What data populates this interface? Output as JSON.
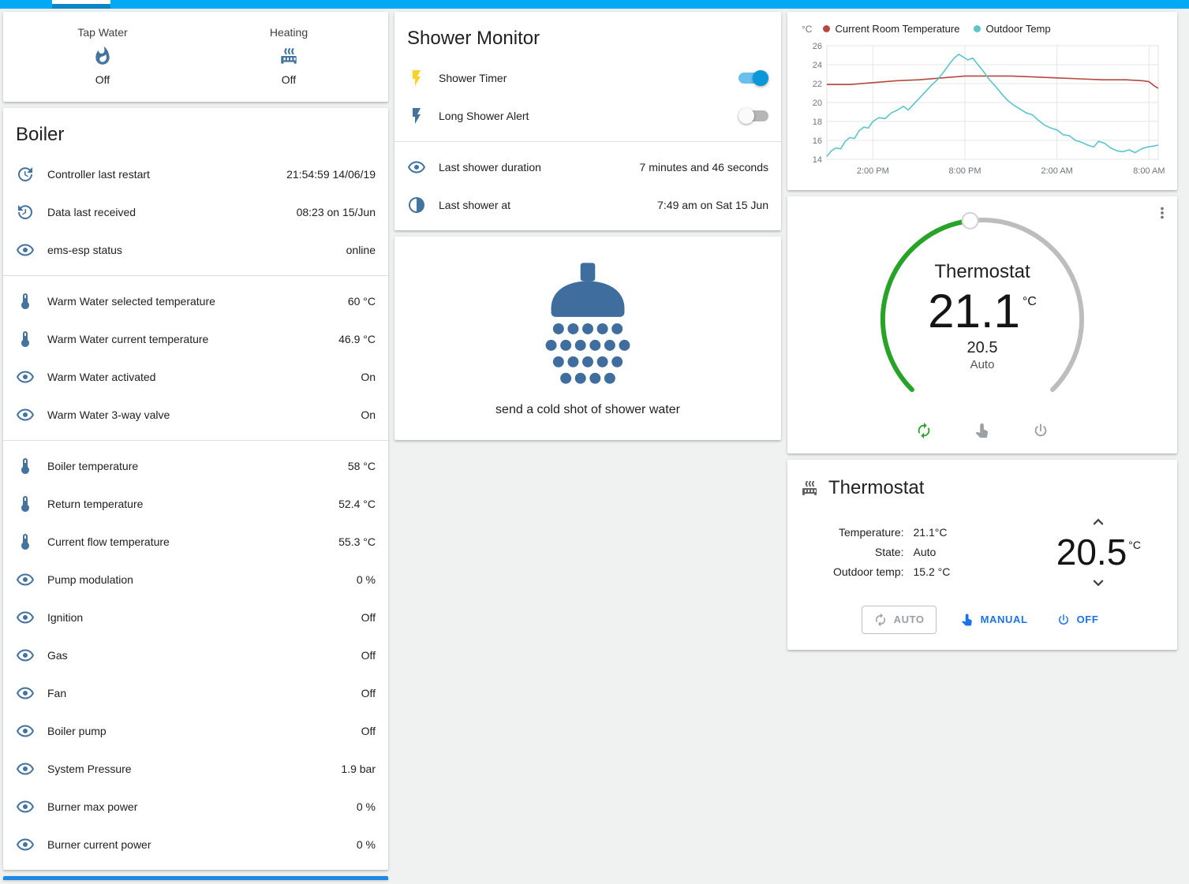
{
  "theme": {
    "topbar_color": "#03a9f4",
    "icon_color": "#44739e",
    "accent_green": "#27a327",
    "toggle_on_color": "#0b98d8",
    "blue_action": "#1a73e8",
    "page_bg": "#f0f1f1",
    "card_bg": "#ffffff"
  },
  "glance": {
    "items": [
      {
        "label": "Tap Water",
        "icon": "fire",
        "state": "Off"
      },
      {
        "label": "Heating",
        "icon": "radiator",
        "state": "Off"
      }
    ]
  },
  "boiler": {
    "title": "Boiler",
    "rows": [
      {
        "icon": "clock-restart",
        "name": "Controller last restart",
        "value": "21:54:59 14/06/19"
      },
      {
        "icon": "clock-receive",
        "name": "Data last received",
        "value": "08:23 on 15/Jun"
      },
      {
        "icon": "eye",
        "name": "ems-esp status",
        "value": "online",
        "divider_after": true
      },
      {
        "icon": "thermometer",
        "name": "Warm Water selected temperature",
        "value": "60 °C"
      },
      {
        "icon": "thermometer",
        "name": "Warm Water current temperature",
        "value": "46.9 °C"
      },
      {
        "icon": "eye",
        "name": "Warm Water activated",
        "value": "On"
      },
      {
        "icon": "eye",
        "name": "Warm Water 3-way valve",
        "value": "On",
        "divider_after": true
      },
      {
        "icon": "thermometer",
        "name": "Boiler temperature",
        "value": "58 °C"
      },
      {
        "icon": "thermometer",
        "name": "Return temperature",
        "value": "52.4 °C"
      },
      {
        "icon": "thermometer",
        "name": "Current flow temperature",
        "value": "55.3 °C"
      },
      {
        "icon": "eye",
        "name": "Pump modulation",
        "value": "0 %"
      },
      {
        "icon": "eye",
        "name": "Ignition",
        "value": "Off"
      },
      {
        "icon": "eye",
        "name": "Gas",
        "value": "Off"
      },
      {
        "icon": "eye",
        "name": "Fan",
        "value": "Off"
      },
      {
        "icon": "eye",
        "name": "Boiler pump",
        "value": "Off"
      },
      {
        "icon": "eye",
        "name": "System Pressure",
        "value": "1.9 bar"
      },
      {
        "icon": "eye",
        "name": "Burner max power",
        "value": "0 %"
      },
      {
        "icon": "eye",
        "name": "Burner current power",
        "value": "0 %"
      }
    ]
  },
  "shower_monitor": {
    "title": "Shower Monitor",
    "toggles": [
      {
        "icon": "flash",
        "icon_color": "#fdd128",
        "name": "Shower Timer",
        "on": true
      },
      {
        "icon": "flash",
        "icon_color": "#44739e",
        "name": "Long Shower Alert",
        "on": false
      }
    ],
    "info": [
      {
        "icon": "eye",
        "name": "Last shower duration",
        "value": "7 minutes and 46 seconds"
      },
      {
        "icon": "clock-half",
        "name": "Last shower at",
        "value": "7:49 am on Sat 15 Jun"
      }
    ]
  },
  "shower_action": {
    "label": "send a cold shot of shower water",
    "icon_color": "#3f6e9e"
  },
  "chart_data": {
    "type": "line",
    "title": "",
    "ylabel": "°C",
    "ylim": [
      14,
      26
    ],
    "ytick": 2,
    "xlim": [
      0,
      21.6
    ],
    "x_unit": "hours from 11:00 AM",
    "grid": true,
    "legend_position": "top",
    "xticks": [
      {
        "x": 3,
        "label": "2:00 PM"
      },
      {
        "x": 9,
        "label": "8:00 PM"
      },
      {
        "x": 15,
        "label": "2:00 AM"
      },
      {
        "x": 21,
        "label": "8:00 AM"
      }
    ],
    "series": [
      {
        "name": "Current Room Temperature",
        "color": "#b5483f",
        "points": [
          [
            0,
            21.9
          ],
          [
            1.5,
            21.9
          ],
          [
            3,
            22.1
          ],
          [
            4.5,
            22.3
          ],
          [
            6,
            22.4
          ],
          [
            7.5,
            22.6
          ],
          [
            9,
            22.8
          ],
          [
            10.5,
            22.8
          ],
          [
            12,
            22.8
          ],
          [
            13.5,
            22.7
          ],
          [
            15,
            22.6
          ],
          [
            16.5,
            22.5
          ],
          [
            18,
            22.4
          ],
          [
            19.5,
            22.4
          ],
          [
            20.6,
            22.3
          ],
          [
            21.0,
            22.2
          ],
          [
            21.3,
            21.8
          ],
          [
            21.6,
            21.5
          ]
        ]
      },
      {
        "name": "Outdoor Temp",
        "color": "#5bc4cc",
        "points": [
          [
            0,
            14.3
          ],
          [
            0.3,
            14.9
          ],
          [
            0.6,
            15.2
          ],
          [
            0.9,
            15.1
          ],
          [
            1.2,
            15.9
          ],
          [
            1.5,
            16.3
          ],
          [
            1.8,
            16.2
          ],
          [
            2.1,
            17.0
          ],
          [
            2.4,
            17.4
          ],
          [
            2.7,
            17.3
          ],
          [
            3.0,
            18.0
          ],
          [
            3.4,
            18.4
          ],
          [
            3.8,
            18.3
          ],
          [
            4.2,
            18.9
          ],
          [
            4.6,
            19.2
          ],
          [
            5.0,
            19.6
          ],
          [
            5.3,
            19.2
          ],
          [
            5.7,
            19.9
          ],
          [
            6.0,
            20.4
          ],
          [
            6.4,
            21.1
          ],
          [
            6.8,
            21.8
          ],
          [
            7.2,
            22.4
          ],
          [
            7.6,
            23.2
          ],
          [
            8.0,
            24.1
          ],
          [
            8.3,
            24.7
          ],
          [
            8.6,
            25.1
          ],
          [
            8.9,
            24.8
          ],
          [
            9.2,
            24.5
          ],
          [
            9.5,
            24.7
          ],
          [
            9.8,
            24.1
          ],
          [
            10.2,
            23.3
          ],
          [
            10.6,
            22.4
          ],
          [
            11.0,
            21.7
          ],
          [
            11.4,
            20.9
          ],
          [
            11.8,
            20.2
          ],
          [
            12.2,
            19.7
          ],
          [
            12.6,
            19.3
          ],
          [
            13.0,
            18.9
          ],
          [
            13.4,
            18.7
          ],
          [
            13.8,
            18.1
          ],
          [
            14.2,
            17.6
          ],
          [
            14.6,
            17.3
          ],
          [
            15.0,
            17.1
          ],
          [
            15.4,
            16.6
          ],
          [
            15.8,
            16.5
          ],
          [
            16.2,
            16.0
          ],
          [
            16.6,
            15.8
          ],
          [
            17.0,
            15.5
          ],
          [
            17.4,
            15.3
          ],
          [
            17.7,
            15.9
          ],
          [
            18.1,
            15.7
          ],
          [
            18.5,
            15.2
          ],
          [
            18.9,
            14.9
          ],
          [
            19.3,
            14.8
          ],
          [
            19.7,
            15.0
          ],
          [
            20.1,
            14.7
          ],
          [
            20.5,
            15.1
          ],
          [
            20.9,
            15.3
          ],
          [
            21.3,
            15.4
          ],
          [
            21.6,
            15.5
          ]
        ]
      }
    ]
  },
  "thermostat_dial": {
    "title": "Thermostat",
    "current": "21.1",
    "unit": "°C",
    "target": "20.5",
    "mode": "Auto",
    "actions": [
      {
        "icon": "autorenew",
        "color": "#27a327",
        "name": "auto-mode"
      },
      {
        "icon": "hand",
        "color": "#9aa0a6",
        "name": "manual-mode"
      },
      {
        "icon": "power",
        "color": "#9aa0a6",
        "name": "power-off"
      }
    ]
  },
  "thermostat_card": {
    "title": "Thermostat",
    "rows": [
      {
        "label": "Temperature:",
        "value": "21.1°C"
      },
      {
        "label": "State:",
        "value": "Auto"
      },
      {
        "label": "Outdoor temp:",
        "value": "15.2 °C"
      }
    ],
    "target": "20.5",
    "unit": "°C",
    "buttons": [
      {
        "icon": "autorenew",
        "label": "AUTO",
        "style": "outlined"
      },
      {
        "icon": "hand",
        "label": "MANUAL",
        "style": "text"
      },
      {
        "icon": "power",
        "label": "OFF",
        "style": "text"
      }
    ]
  }
}
